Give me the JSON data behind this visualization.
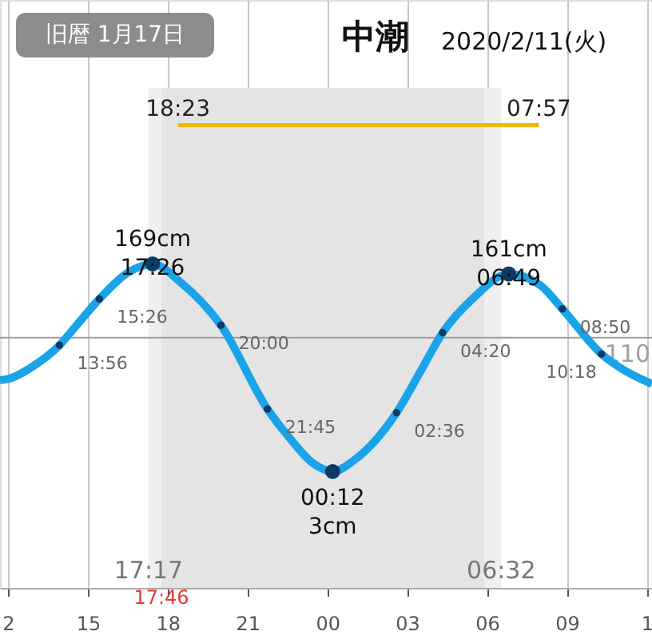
{
  "chart_data": {
    "type": "line",
    "title": "中潮",
    "subtitle": "2020/2/11(火)",
    "annotations": [
      "旧暦 1月17日",
      {
        "text": "18:23",
        "x": "2020-02-10T18:23",
        "y": 280
      },
      {
        "text": "07:57",
        "x": "2020-02-11T07:57",
        "y": 280
      },
      {
        "text": "13:56",
        "x": "2020-02-10T13:56",
        "y": 104
      },
      {
        "text": "15:26",
        "x": "2020-02-10T15:26",
        "y": 141
      },
      {
        "text": "20:00",
        "x": "2020-02-10T20:00",
        "y": 120
      },
      {
        "text": "21:45",
        "x": "2020-02-10T21:45",
        "y": 53
      },
      {
        "text": "02:36",
        "x": "2020-02-11T02:36",
        "y": 50
      },
      {
        "text": "04:20",
        "x": "2020-02-11T04:20",
        "y": 114
      },
      {
        "text": "08:50",
        "x": "2020-02-11T08:50",
        "y": 133
      },
      {
        "text": "10:18",
        "x": "2020-02-11T10:18",
        "y": 97
      },
      {
        "text": "17:17",
        "x": "2020-02-10T17:17"
      },
      {
        "text": "06:32",
        "x": "2020-02-11T06:32"
      }
    ],
    "series": [
      {
        "color": "#1aa3e8",
        "x": [
          "2020-02-10T11:42",
          "2020-02-10T12:00",
          "2020-02-10T13:00",
          "2020-02-10T13:56",
          "2020-02-10T14:30",
          "2020-02-10T15:26",
          "2020-02-10T16:30",
          "2020-02-10T17:26",
          "2020-02-10T18:30",
          "2020-02-10T20:00",
          "2020-02-10T21:45",
          "2020-02-10T22:30",
          "2020-02-10T23:30",
          "2020-02-11T00:12",
          "2020-02-11T01:00",
          "2020-02-11T02:36",
          "2020-02-11T03:30",
          "2020-02-11T04:20",
          "2020-02-11T05:30",
          "2020-02-11T06:49",
          "2020-02-11T08:00",
          "2020-02-11T08:50",
          "2020-02-11T10:18",
          "2020-02-11T11:00",
          "2020-02-11T12:12"
        ],
        "values": [
          76,
          77,
          88,
          104,
          118,
          141,
          162,
          169,
          154,
          120,
          53,
          32,
          9,
          3,
          12,
          50,
          83,
          114,
          142,
          161,
          152,
          133,
          97,
          86,
          73
        ]
      },
      {
        "type": "scatter",
        "color": "#0d3b66",
        "marker": "circle",
        "x": [
          "2020-02-10T13:56",
          "2020-02-10T15:26",
          "2020-02-10T20:00",
          "2020-02-10T21:45",
          "2020-02-11T02:36",
          "2020-02-11T04:20",
          "2020-02-11T08:50",
          "2020-02-11T10:18"
        ],
        "values": [
          104,
          141,
          120,
          53,
          50,
          114,
          133,
          97
        ]
      },
      {
        "type": "scatter",
        "color": "#0d3b66",
        "marker": "circle",
        "x": [
          "2020-02-10T17:26",
          "2020-02-11T00:12",
          "2020-02-11T06:49"
        ],
        "values": [
          169,
          3,
          161
        ],
        "value_labels": [
          "169cm\n17:26",
          "00:12\n3cm",
          "161cm\n06:49"
        ]
      },
      {
        "type": "line",
        "color": "#f5b800",
        "x": [
          "2020-02-10T18:23",
          "2020-02-11T07:57"
        ],
        "values": [
          280,
          280
        ]
      }
    ],
    "bands": [
      {
        "axis": "x",
        "from": "2020-02-10T17:17",
        "to": "2020-02-11T06:32",
        "color": "#efefef"
      },
      {
        "axis": "x",
        "from": "2020-02-10T17:46",
        "to": "2020-02-11T05:54",
        "color": "#e4e4e4",
        "label": "17:46"
      }
    ],
    "ref_lines": [
      {
        "axis": "y",
        "value": 110,
        "label": "110",
        "color": "#9e9e9e"
      }
    ],
    "xlim": [
      "2020-02-10T11:42",
      "2020-02-11T12:12"
    ],
    "xticks": [
      {
        "value": "2020-02-10T12:00",
        "label": "2"
      },
      {
        "value": "2020-02-10T15:00",
        "label": "15"
      },
      {
        "value": "2020-02-10T18:00",
        "label": "18"
      },
      {
        "value": "2020-02-10T21:00",
        "label": "21"
      },
      {
        "value": "2020-02-11T00:00",
        "label": "00"
      },
      {
        "value": "2020-02-11T03:00",
        "label": "03"
      },
      {
        "value": "2020-02-11T06:00",
        "label": "06"
      },
      {
        "value": "2020-02-11T09:00",
        "label": "09"
      },
      {
        "value": "2020-02-11T12:00",
        "label": "1"
      }
    ],
    "ylim": [
      -90,
      380
    ],
    "tick_labels": "x",
    "grid": "x"
  }
}
